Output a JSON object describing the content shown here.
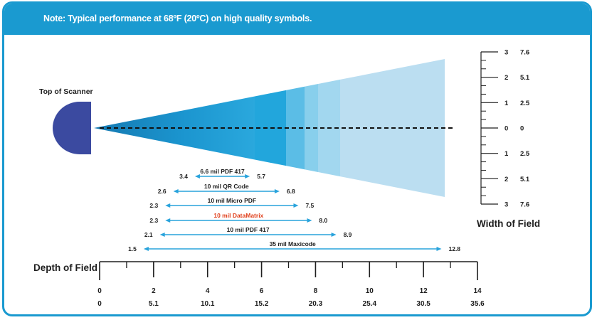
{
  "banner": {
    "note": "Note: Typical performance at 68ºF (20ºC) on high quality symbols."
  },
  "scanner": {
    "label": "Top of Scanner"
  },
  "width_of_field": {
    "label": "Width of Field",
    "ticks": [
      {
        "in": "3",
        "cm": "7.6"
      },
      {
        "in": "2",
        "cm": "5.1"
      },
      {
        "in": "1",
        "cm": "2.5"
      },
      {
        "in": "0",
        "cm": "0"
      },
      {
        "in": "1",
        "cm": "2.5"
      },
      {
        "in": "2",
        "cm": "5.1"
      },
      {
        "in": "3",
        "cm": "7.6"
      }
    ]
  },
  "depth_of_field": {
    "label": "Depth of Field",
    "inches": [
      "0",
      "2",
      "4",
      "6",
      "8",
      "10",
      "12",
      "14"
    ],
    "cm": [
      "0",
      "5.1",
      "10.1",
      "15.2",
      "20.3",
      "25.4",
      "30.5",
      "35.6"
    ],
    "max": 14
  },
  "ranges": [
    {
      "name": "6.6 mil PDF 417",
      "near": 3.4,
      "far": 5.7,
      "near_label": "3.4",
      "far_label": "5.7",
      "label_color": "#1e1e1e"
    },
    {
      "name": "10 mil QR Code",
      "near": 2.6,
      "far": 6.8,
      "near_label": "2.6",
      "far_label": "6.8",
      "label_color": "#1e1e1e"
    },
    {
      "name": "10 mil Micro PDF",
      "near": 2.3,
      "far": 7.5,
      "near_label": "2.3",
      "far_label": "7.5",
      "label_color": "#1e1e1e"
    },
    {
      "name": "10 mil DataMatrix",
      "near": 2.3,
      "far": 8.0,
      "near_label": "2.3",
      "far_label": "8.0",
      "label_color": "#e0401c"
    },
    {
      "name": "10 mil PDF 417",
      "near": 2.1,
      "far": 8.9,
      "near_label": "2.1",
      "far_label": "8.9",
      "label_color": "#1e1e1e"
    },
    {
      "name": "35 mil Maxicode",
      "near": 1.5,
      "far": 12.8,
      "near_label": "1.5",
      "far_label": "12.8",
      "label_color": "#1e1e1e"
    }
  ],
  "colors": {
    "banner": "#1a9ad0",
    "scanner": "#3b4aa0",
    "arrow": "#29a3dc",
    "beam_dark": "#1680b8",
    "beam_light": "#b9dcef"
  }
}
